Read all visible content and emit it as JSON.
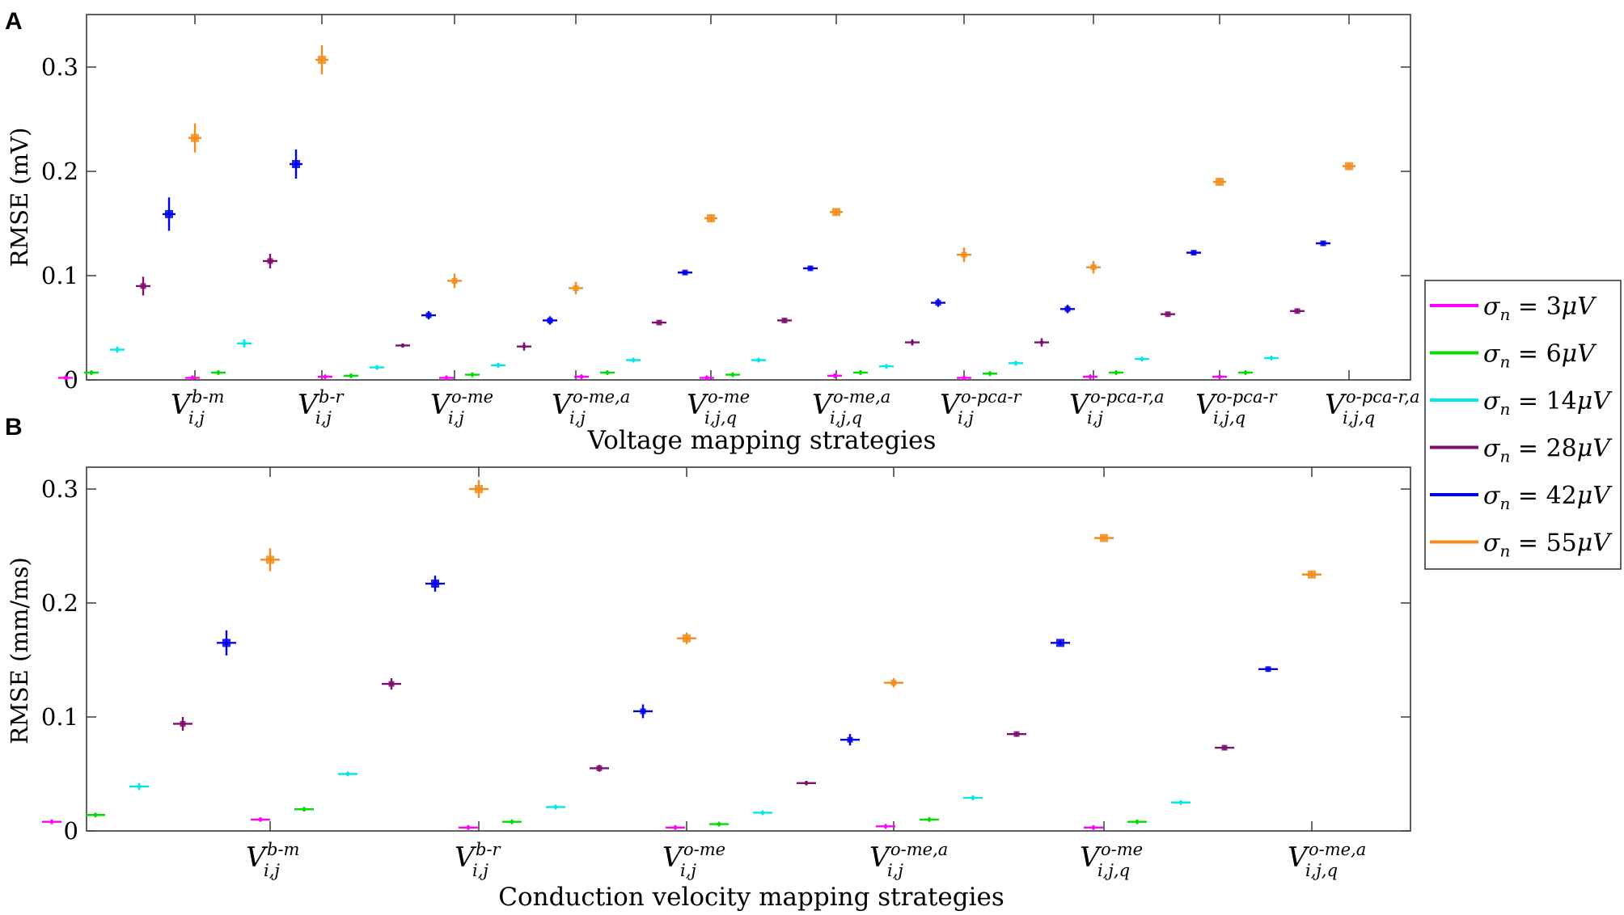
{
  "panels": [
    {
      "label": "A",
      "ylabel": "RMSE (mV)",
      "xlabel": "Voltage mapping strategies",
      "yticks": [
        "0",
        "0.1",
        "0.2",
        "0.3"
      ],
      "categories": [
        {
          "sup": "b-m",
          "sub": "i,j"
        },
        {
          "sup": "b-r",
          "sub": "i,j"
        },
        {
          "sup": "o-me",
          "sub": "i,j"
        },
        {
          "sup": "o-me,a",
          "sub": "i,j"
        },
        {
          "sup": "o-me",
          "sub": "i,j,q"
        },
        {
          "sup": "o-me,a",
          "sub": "i,j,q"
        },
        {
          "sup": "o-pca-r",
          "sub": "i,j"
        },
        {
          "sup": "o-pca-r,a",
          "sub": "i,j"
        },
        {
          "sup": "o-pca-r",
          "sub": "i,j,q"
        },
        {
          "sup": "o-pca-r,a",
          "sub": "i,j,q"
        }
      ]
    },
    {
      "label": "B",
      "ylabel": "RMSE (mm/ms)",
      "xlabel": "Conduction velocity mapping strategies",
      "yticks": [
        "0",
        "0.1",
        "0.2",
        "0.3"
      ],
      "categories": [
        {
          "sup": "b-m",
          "sub": "i,j"
        },
        {
          "sup": "b-r",
          "sub": "i,j"
        },
        {
          "sup": "o-me",
          "sub": "i,j"
        },
        {
          "sup": "o-me,a",
          "sub": "i,j"
        },
        {
          "sup": "o-me",
          "sub": "i,j,q"
        },
        {
          "sup": "o-me,a",
          "sub": "i,j,q"
        }
      ]
    }
  ],
  "legend": [
    {
      "value": "3",
      "color": "#ff00ff"
    },
    {
      "value": "6",
      "color": "#00dd00"
    },
    {
      "value": "14",
      "color": "#00e8e8"
    },
    {
      "value": "28",
      "color": "#7e0f6e"
    },
    {
      "value": "42",
      "color": "#0000e6"
    },
    {
      "value": "55",
      "color": "#f28c1c"
    }
  ],
  "chart_data": [
    {
      "type": "scatter",
      "panel": "A",
      "ylim": [
        0,
        0.335
      ],
      "series": [
        {
          "name": "3",
          "values": [
            0.002,
            0.002,
            0.003,
            0.002,
            0.003,
            0.002,
            0.004,
            0.002,
            0.003,
            0.003
          ],
          "err": [
            0.0005,
            0.0005,
            0.0005,
            0.0005,
            0.0005,
            0.0005,
            0.001,
            0.0005,
            0.0005,
            0.0005
          ]
        },
        {
          "name": "6",
          "values": [
            0.007,
            0.007,
            0.004,
            0.005,
            0.007,
            0.005,
            0.007,
            0.006,
            0.007,
            0.007
          ],
          "err": [
            0.001,
            0.0005,
            0.0005,
            0.0005,
            0.0005,
            0.0005,
            0.001,
            0.0005,
            0.0005,
            0.0005
          ]
        },
        {
          "name": "14",
          "values": [
            0.029,
            0.035,
            0.012,
            0.014,
            0.019,
            0.019,
            0.013,
            0.016,
            0.02,
            0.021
          ],
          "err": [
            0.003,
            0.004,
            0.0005,
            0.001,
            0.0005,
            0.0005,
            0.0005,
            0.001,
            0.0005,
            0.0005
          ]
        },
        {
          "name": "28",
          "values": [
            0.09,
            0.114,
            0.033,
            0.032,
            0.055,
            0.057,
            0.036,
            0.036,
            0.063,
            0.066
          ],
          "err": [
            0.009,
            0.007,
            0.002,
            0.004,
            0.002,
            0.002,
            0.003,
            0.004,
            0.001,
            0.001
          ]
        },
        {
          "name": "42",
          "values": [
            0.159,
            0.207,
            0.062,
            0.057,
            0.103,
            0.107,
            0.074,
            0.068,
            0.122,
            0.131
          ],
          "err": [
            0.016,
            0.014,
            0.004,
            0.004,
            0.002,
            0.002,
            0.004,
            0.004,
            0.002,
            0.002
          ]
        },
        {
          "name": "55",
          "values": [
            0.232,
            0.307,
            0.095,
            0.088,
            0.155,
            0.161,
            0.12,
            0.108,
            0.19,
            0.205
          ],
          "err": [
            0.014,
            0.014,
            0.007,
            0.006,
            0.003,
            0.003,
            0.007,
            0.006,
            0.003,
            0.003
          ]
        }
      ]
    },
    {
      "type": "scatter",
      "panel": "B",
      "ylim": [
        0,
        0.32
      ],
      "series": [
        {
          "name": "3",
          "values": [
            0.008,
            0.01,
            0.003,
            0.003,
            0.004,
            0.003
          ],
          "err": [
            0.0005,
            0.002,
            0.0005,
            0.0005,
            0.0005,
            0.0005
          ]
        },
        {
          "name": "6",
          "values": [
            0.014,
            0.019,
            0.008,
            0.006,
            0.01,
            0.008
          ],
          "err": [
            0.001,
            0.002,
            0.0005,
            0.0005,
            0.0005,
            0.0005
          ]
        },
        {
          "name": "14",
          "values": [
            0.039,
            0.05,
            0.021,
            0.016,
            0.029,
            0.025
          ],
          "err": [
            0.003,
            0.002,
            0.001,
            0.001,
            0.001,
            0.001
          ]
        },
        {
          "name": "28",
          "values": [
            0.094,
            0.129,
            0.055,
            0.042,
            0.085,
            0.073
          ],
          "err": [
            0.006,
            0.005,
            0.003,
            0.002,
            0.001,
            0.001
          ]
        },
        {
          "name": "42",
          "values": [
            0.165,
            0.217,
            0.105,
            0.08,
            0.165,
            0.142
          ],
          "err": [
            0.011,
            0.007,
            0.006,
            0.005,
            0.001,
            0.001
          ]
        },
        {
          "name": "55",
          "values": [
            0.238,
            0.3,
            0.169,
            0.13,
            0.257,
            0.225
          ],
          "err": [
            0.01,
            0.008,
            0.005,
            0.004,
            0.001,
            0.001
          ]
        }
      ]
    }
  ]
}
